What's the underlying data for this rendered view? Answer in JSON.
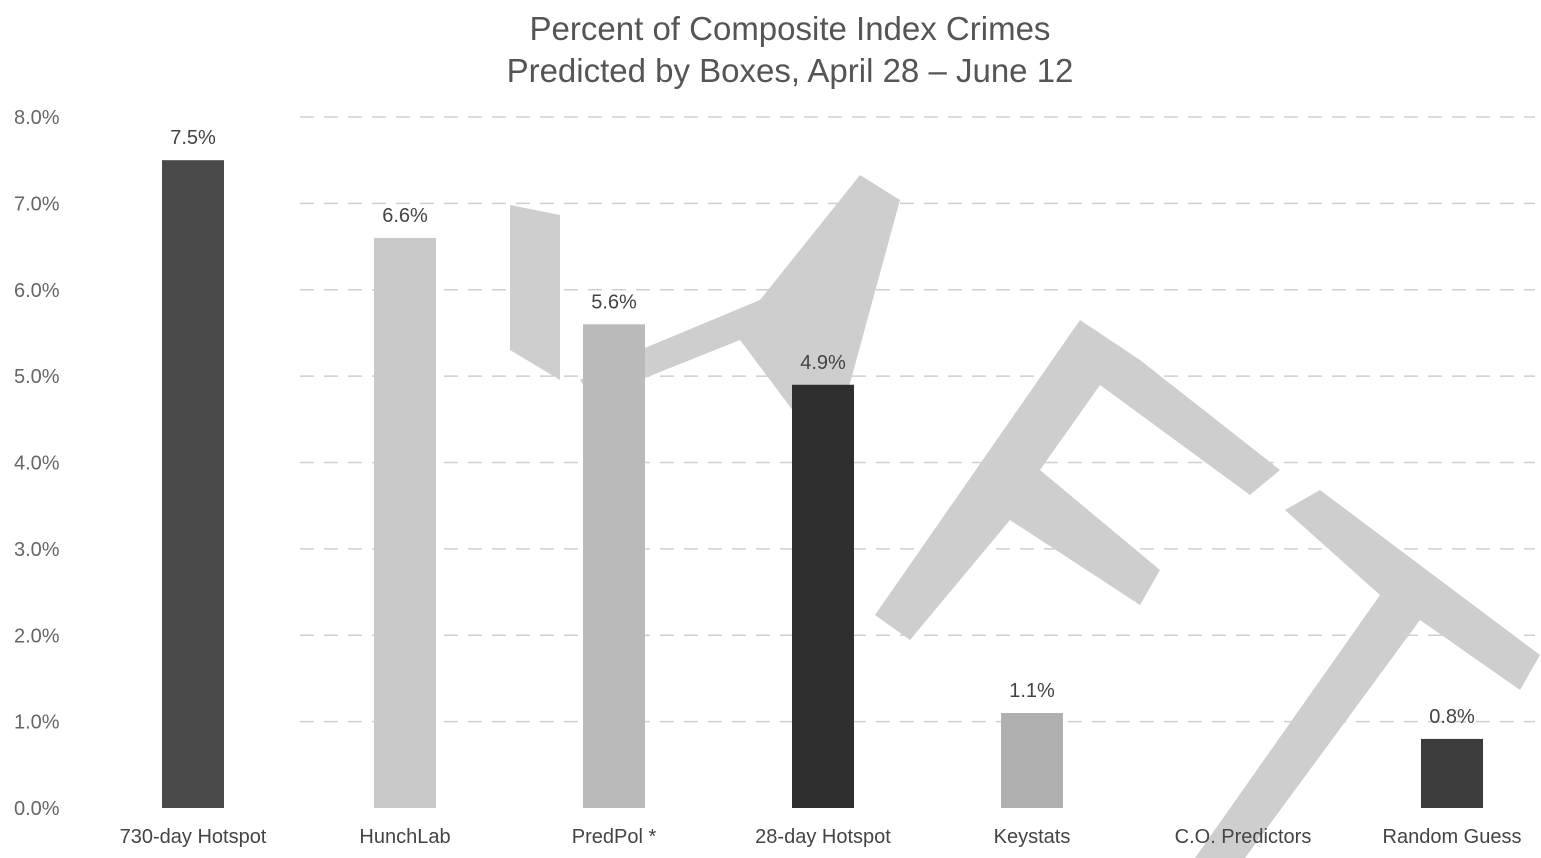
{
  "chart_data": {
    "type": "bar",
    "title_lines": [
      "Percent of Composite Index Crimes",
      "Predicted by Boxes, April 28 – June 12"
    ],
    "categories": [
      "730-day Hotspot",
      "HunchLab",
      "PredPol *",
      "28-day Hotspot",
      "Keystats",
      "C.O. Predictors",
      "Random Guess"
    ],
    "values": [
      7.5,
      6.6,
      5.6,
      4.9,
      1.1,
      0,
      0.8
    ],
    "data_labels": [
      "7.5%",
      "6.6%",
      "5.6%",
      "4.9%",
      "1.1%",
      "",
      "0.8%"
    ],
    "y_ticks": [
      "0.0%",
      "1.0%",
      "2.0%",
      "3.0%",
      "4.0%",
      "5.0%",
      "6.0%",
      "7.0%",
      "8.0%"
    ],
    "ylim": [
      0,
      8
    ],
    "grid": true,
    "legend": "none",
    "bar_colors": [
      "#4a4a4a",
      "#c9c9c9",
      "#bababa",
      "#2f2f2f",
      "#b0b0b0",
      "#b0b0b0",
      "#3c3c3c"
    ],
    "watermark": "DRAFT"
  }
}
